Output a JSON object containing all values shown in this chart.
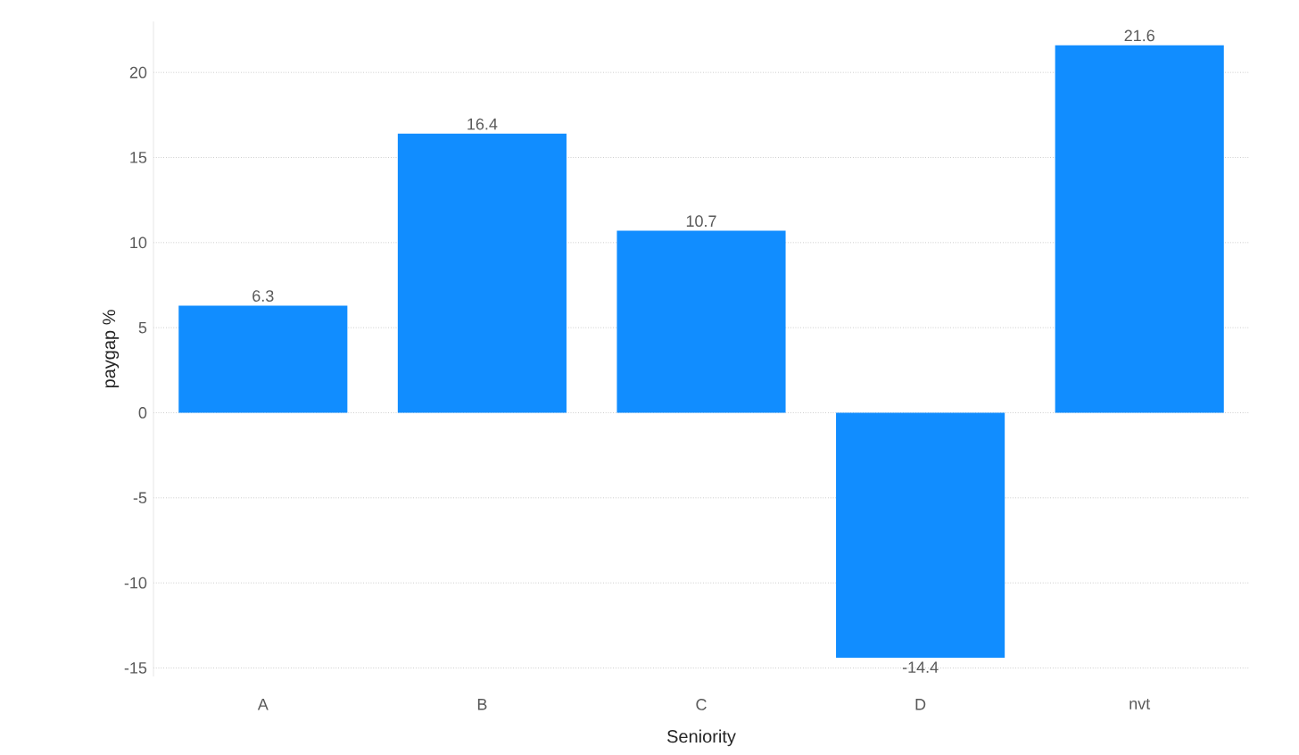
{
  "chart_data": {
    "type": "bar",
    "xlabel": "Seniority",
    "ylabel": "paygap %",
    "categories": [
      "A",
      "B",
      "C",
      "D",
      "nvt"
    ],
    "values": [
      6.3,
      16.4,
      10.7,
      -14.4,
      21.6
    ],
    "color": "#118dff",
    "ylim": [
      -15.5,
      23
    ],
    "yticks": [
      -15,
      -10,
      -5,
      0,
      5,
      10,
      15,
      20
    ],
    "grid": "y",
    "data_labels": true
  }
}
